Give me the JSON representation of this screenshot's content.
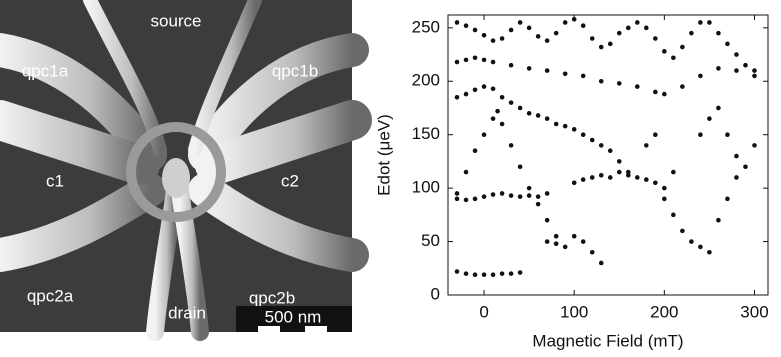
{
  "image": {
    "labels": [
      "source",
      "qpc1a",
      "qpc1b",
      "c1",
      "c2",
      "qpc2a",
      "qpc2b",
      "drain"
    ],
    "scale_bar": "500 nm"
  },
  "chart_data": {
    "type": "scatter",
    "color": "#111111",
    "x_label": "Magnetic Field (mT)",
    "y_label": "Edot (μeV)",
    "xlim": [
      -40,
      315
    ],
    "ylim": [
      0,
      262
    ],
    "xticks": [
      0,
      100,
      200,
      300
    ],
    "yticks": [
      0,
      50,
      100,
      150,
      200,
      250
    ],
    "x": [
      -30,
      -20,
      -10,
      0,
      10,
      20,
      30,
      40,
      70,
      80,
      90,
      100,
      110,
      120,
      130,
      -30,
      -20,
      -10,
      0,
      10,
      20,
      30,
      40,
      50,
      60,
      70,
      100,
      110,
      120,
      130,
      140,
      150,
      160,
      170,
      180,
      190,
      -30,
      -20,
      -10,
      0,
      10,
      15,
      20,
      30,
      40,
      50,
      60,
      70,
      80,
      -30,
      -20,
      -10,
      0,
      10,
      20,
      30,
      40,
      50,
      60,
      70,
      80,
      90,
      100,
      110,
      120,
      130,
      140,
      150,
      160,
      -30,
      -20,
      -10,
      0,
      10,
      30,
      50,
      70,
      90,
      110,
      130,
      150,
      170,
      190,
      200,
      220,
      240,
      260,
      280,
      300,
      -30,
      -20,
      -10,
      0,
      10,
      20,
      30,
      40,
      50,
      60,
      70,
      80,
      90,
      100,
      110,
      120,
      130,
      140,
      150,
      160,
      170,
      180,
      190,
      200,
      210,
      220,
      230,
      240,
      250,
      260,
      270,
      280,
      290,
      300,
      200,
      210,
      220,
      230,
      240,
      250,
      260,
      270,
      280,
      290,
      300,
      240,
      250,
      260,
      270,
      280,
      180,
      190,
      200,
      210
    ],
    "values": [
      22,
      20,
      19,
      19,
      19,
      20,
      20,
      21,
      50,
      48,
      45,
      55,
      50,
      40,
      30,
      90,
      89,
      90,
      92,
      94,
      95,
      93,
      92,
      93,
      92,
      95,
      105,
      108,
      110,
      112,
      110,
      115,
      112,
      110,
      108,
      105,
      95,
      115,
      135,
      150,
      165,
      172,
      160,
      140,
      120,
      100,
      85,
      70,
      55,
      185,
      188,
      192,
      195,
      193,
      185,
      180,
      175,
      170,
      168,
      165,
      160,
      158,
      155,
      150,
      145,
      140,
      135,
      125,
      115,
      218,
      220,
      222,
      220,
      218,
      215,
      212,
      210,
      207,
      205,
      200,
      198,
      195,
      190,
      188,
      195,
      205,
      212,
      210,
      205,
      255,
      252,
      248,
      243,
      238,
      240,
      248,
      255,
      250,
      242,
      238,
      245,
      255,
      258,
      252,
      240,
      232,
      235,
      245,
      250,
      255,
      250,
      240,
      228,
      222,
      232,
      245,
      255,
      255,
      245,
      235,
      225,
      215,
      210,
      90,
      75,
      60,
      50,
      45,
      40,
      70,
      90,
      110,
      120,
      140,
      150,
      165,
      175,
      150,
      130,
      140,
      150,
      100,
      115
    ]
  }
}
